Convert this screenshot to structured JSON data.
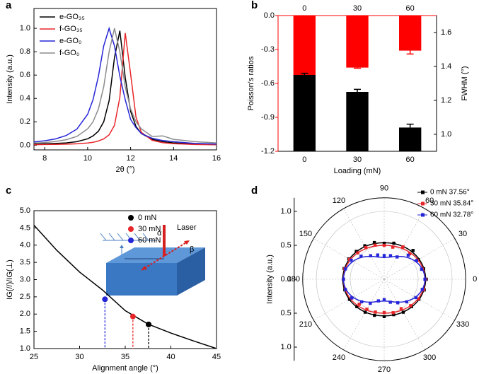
{
  "chart_data": [
    {
      "type": "line",
      "label": "a",
      "xlabel": "2θ (°)",
      "ylabel": "Intensity (a.u.)",
      "x": [
        7.5,
        8,
        8.5,
        9,
        9.5,
        10,
        10.25,
        10.5,
        10.75,
        11,
        11.25,
        11.5,
        11.75,
        12,
        12.25,
        12.5,
        13,
        13.5,
        14,
        15,
        16
      ],
      "xlim": [
        7.5,
        16
      ],
      "xticks": [
        8,
        10,
        12,
        14,
        16
      ],
      "ylim": [
        -0.04,
        1.17
      ],
      "yticks": [
        {
          "value": 0,
          "label": "0.0"
        },
        0.2,
        0.4,
        0.6,
        0.8,
        {
          "value": 1,
          "label": "1.0"
        }
      ],
      "legend": "upper left",
      "series": [
        {
          "name": "e-GO₃₅",
          "color": "#000000",
          "values": [
            0.01,
            0.012,
            0.015,
            0.02,
            0.03,
            0.055,
            0.08,
            0.12,
            0.2,
            0.38,
            0.75,
            0.98,
            0.58,
            0.29,
            0.16,
            0.1,
            0.05,
            0.03,
            0.02,
            0.01,
            0.005
          ]
        },
        {
          "name": "f-GO₃₅",
          "color": "#e8262a",
          "values": [
            0.005,
            0.006,
            0.007,
            0.009,
            0.012,
            0.019,
            0.025,
            0.036,
            0.054,
            0.089,
            0.17,
            0.41,
            0.96,
            0.61,
            0.24,
            0.11,
            0.042,
            0.021,
            0.013,
            0.006,
            0.004
          ]
        },
        {
          "name": "e-GO₀",
          "color": "#2626d8",
          "values": [
            0.028,
            0.038,
            0.054,
            0.083,
            0.138,
            0.265,
            0.39,
            0.59,
            0.85,
            1.0,
            0.85,
            0.59,
            0.39,
            0.22,
            0.15,
            0.1,
            0.06,
            0.04,
            0.03,
            0.015,
            0.01
          ]
        },
        {
          "name": "f-GO₀",
          "color": "#8c8c8c",
          "values": [
            0.018,
            0.023,
            0.032,
            0.047,
            0.075,
            0.14,
            0.2,
            0.31,
            0.5,
            0.8,
            1.0,
            0.8,
            0.5,
            0.31,
            0.2,
            0.14,
            0.075,
            0.08,
            0.05,
            0.03,
            0.02
          ]
        }
      ]
    },
    {
      "type": "bar",
      "label": "b",
      "xlabel": "Loading (mN)",
      "ylabel": "Poisson's ratios",
      "y2label": "FWHM (°)",
      "categories": [
        "0",
        "30",
        "60"
      ],
      "ylim": [
        -1.2,
        0
      ],
      "yticks": [
        -1.2,
        -0.9,
        -0.6,
        -0.3,
        {
          "value": 0,
          "label": "0.0"
        }
      ],
      "y2lim": [
        0.9,
        1.7
      ],
      "y2ticks": [
        {
          "value": 1,
          "label": "1.0"
        },
        1.2,
        1.4,
        1.6
      ],
      "series": [
        {
          "color": "#ff0000",
          "values": [
            -0.53,
            -0.46,
            -0.31
          ],
          "errors": [
            0.02,
            0.006,
            0.03
          ]
        },
        {
          "color": "#000000",
          "axis": "y2",
          "values": [
            1.35,
            1.25,
            1.04
          ],
          "errors": [
            0.01,
            0.015,
            0.02
          ]
        }
      ]
    },
    {
      "type": "line",
      "label": "c",
      "xlabel": "Alignment angle (°)",
      "ylabel": "IG(//)/IG(⊥)",
      "x": [
        25,
        27.5,
        30,
        32.5,
        35,
        37.5,
        40,
        42.5,
        45
      ],
      "values": [
        4.58,
        3.85,
        3.22,
        2.7,
        2.1,
        1.71,
        1.45,
        1.22,
        1.0
      ],
      "color": "#000000",
      "xlim": [
        25,
        45
      ],
      "xticks": [
        25,
        30,
        35,
        40,
        45
      ],
      "ylim": [
        1,
        5
      ],
      "yticks": [
        {
          "value": 1,
          "label": "1.0"
        },
        {
          "value": 1.5,
          "label": "1.5"
        },
        {
          "value": 2,
          "label": "2.0"
        },
        {
          "value": 2.5,
          "label": "2.5"
        },
        {
          "value": 3,
          "label": "3.0"
        },
        {
          "value": 3.5,
          "label": "3.5"
        },
        {
          "value": 4,
          "label": "4.0"
        },
        {
          "value": 4.5,
          "label": "4.5"
        },
        {
          "value": 5,
          "label": "5.0"
        }
      ],
      "legend": "upper center",
      "points": [
        {
          "name": "0 mN",
          "color": "#000000",
          "x": [
            37.56
          ],
          "values": [
            1.7
          ]
        },
        {
          "name": "30 mN",
          "color": "#e8262a",
          "x": [
            35.84
          ],
          "values": [
            1.93
          ]
        },
        {
          "name": "60 mN",
          "color": "#2626d8",
          "x": [
            32.78
          ],
          "values": [
            2.43
          ]
        }
      ],
      "annotations": [
        "Laser",
        "α",
        "β"
      ]
    },
    {
      "type": "polar",
      "label": "d",
      "ylabel": "Intensity (a.u.)",
      "theta": [
        0,
        15,
        30,
        45,
        60,
        75,
        90,
        105,
        120,
        135,
        150,
        165,
        180,
        195,
        210,
        225,
        240,
        255,
        270,
        285,
        300,
        315,
        330,
        345
      ],
      "thetaticks": [
        0,
        30,
        60,
        90,
        120,
        150,
        180,
        210,
        240,
        270,
        300,
        330
      ],
      "rlim": [
        0,
        1.2
      ],
      "rticks": [
        {
          "value": 0,
          "label": "0.0"
        },
        0.5,
        {
          "value": 1,
          "label": "1.0"
        }
      ],
      "legend": "upper right",
      "series": [
        {
          "name": "0 mN 37.56°",
          "color": "#000000",
          "values": [
            0.62,
            0.6,
            0.58,
            0.6,
            0.55,
            0.55,
            0.53,
            0.56,
            0.57,
            0.58,
            0.6,
            0.61,
            0.6,
            0.6,
            0.59,
            0.57,
            0.56,
            0.55,
            0.55,
            0.54,
            0.56,
            0.57,
            0.59,
            0.61
          ],
          "fit": [
            0.61,
            0.605,
            0.593,
            0.575,
            0.558,
            0.545,
            0.54,
            0.545,
            0.558,
            0.575,
            0.593,
            0.605,
            0.61,
            0.605,
            0.593,
            0.575,
            0.558,
            0.545,
            0.54,
            0.545,
            0.558,
            0.575,
            0.593,
            0.605
          ]
        },
        {
          "name": "30 mN 35.84°",
          "color": "#e8262a",
          "values": [
            0.61,
            0.58,
            0.56,
            0.53,
            0.55,
            0.49,
            0.5,
            0.52,
            0.54,
            0.55,
            0.59,
            0.6,
            0.6,
            0.59,
            0.55,
            0.52,
            0.51,
            0.5,
            0.49,
            0.51,
            0.5,
            0.55,
            0.58,
            0.6
          ],
          "fit": [
            0.6,
            0.593,
            0.575,
            0.55,
            0.525,
            0.507,
            0.5,
            0.507,
            0.525,
            0.55,
            0.575,
            0.593,
            0.6,
            0.593,
            0.575,
            0.55,
            0.525,
            0.507,
            0.5,
            0.507,
            0.525,
            0.55,
            0.575,
            0.593
          ]
        },
        {
          "name": "60 mN 32.78°",
          "color": "#2626d8",
          "values": [
            0.6,
            0.57,
            0.55,
            0.5,
            0.38,
            0.36,
            0.35,
            0.37,
            0.4,
            0.48,
            0.56,
            0.59,
            0.6,
            0.59,
            0.55,
            0.47,
            0.41,
            0.33,
            0.3,
            0.35,
            0.4,
            0.47,
            0.54,
            0.58
          ],
          "fit": [
            0.6,
            0.581,
            0.53,
            0.46,
            0.39,
            0.339,
            0.32,
            0.339,
            0.39,
            0.46,
            0.53,
            0.581,
            0.6,
            0.581,
            0.53,
            0.46,
            0.39,
            0.339,
            0.32,
            0.339,
            0.39,
            0.46,
            0.53,
            0.581
          ]
        }
      ]
    }
  ]
}
